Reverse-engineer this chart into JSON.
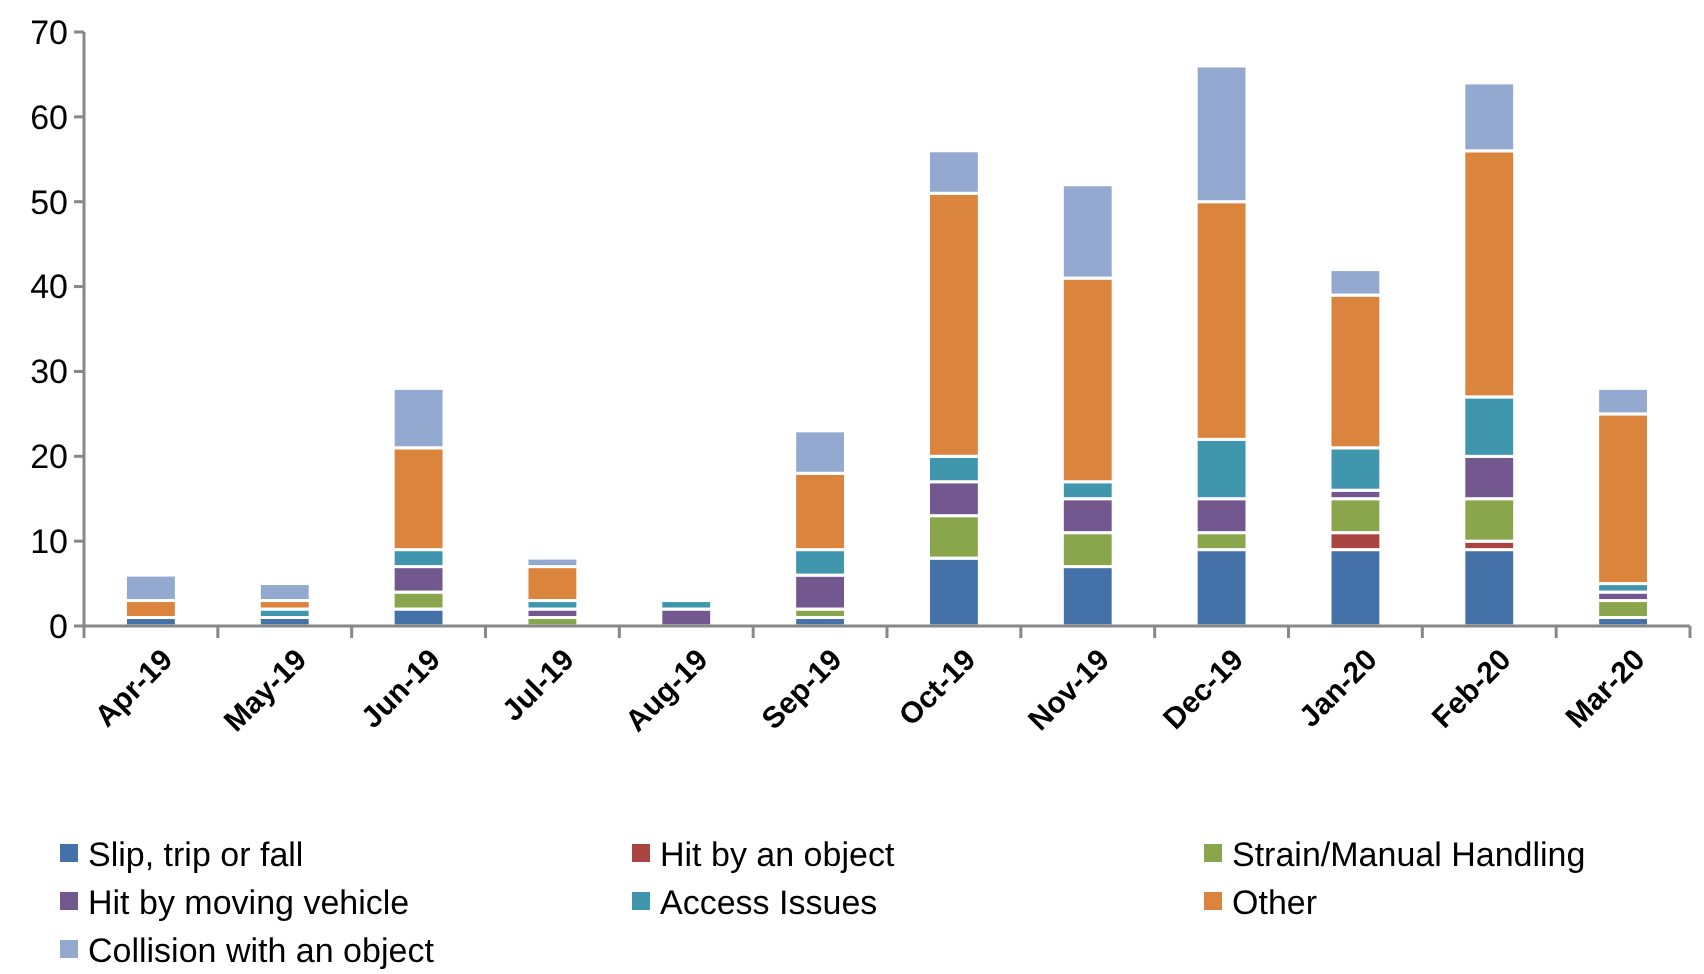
{
  "chart_data": {
    "type": "bar",
    "stacked": true,
    "categories": [
      "Apr-19",
      "May-19",
      "Jun-19",
      "Jul-19",
      "Aug-19",
      "Sep-19",
      "Oct-19",
      "Nov-19",
      "Dec-19",
      "Jan-20",
      "Feb-20",
      "Mar-20"
    ],
    "series": [
      {
        "name": "Slip, trip or fall",
        "color": "#4472a8",
        "values": [
          1,
          1,
          2,
          0,
          0,
          1,
          8,
          7,
          9,
          9,
          9,
          1
        ]
      },
      {
        "name": "Hit by an object",
        "color": "#a94442",
        "values": [
          0,
          0,
          0,
          0,
          0,
          0,
          0,
          0,
          0,
          2,
          1,
          0
        ]
      },
      {
        "name": "Strain/Manual Handling",
        "color": "#8aa64d",
        "values": [
          0,
          0,
          2,
          1,
          0,
          1,
          5,
          4,
          2,
          4,
          5,
          2
        ]
      },
      {
        "name": "Hit by moving vehicle",
        "color": "#73578f",
        "values": [
          0,
          0,
          3,
          1,
          2,
          4,
          4,
          4,
          4,
          1,
          5,
          1
        ]
      },
      {
        "name": "Access Issues",
        "color": "#4097ad",
        "values": [
          0,
          1,
          2,
          1,
          1,
          3,
          3,
          2,
          7,
          5,
          7,
          1
        ]
      },
      {
        "name": "Other",
        "color": "#db843d",
        "values": [
          2,
          1,
          12,
          4,
          0,
          9,
          31,
          24,
          28,
          18,
          29,
          20
        ]
      },
      {
        "name": "Collision with an object",
        "color": "#93a9d0",
        "values": [
          3,
          2,
          7,
          1,
          0,
          5,
          5,
          11,
          16,
          3,
          8,
          3
        ]
      }
    ],
    "ylim": [
      0,
      70
    ],
    "yticks": [
      0,
      10,
      20,
      30,
      40,
      50,
      60,
      70
    ],
    "grid": false,
    "legend": "bottom"
  }
}
